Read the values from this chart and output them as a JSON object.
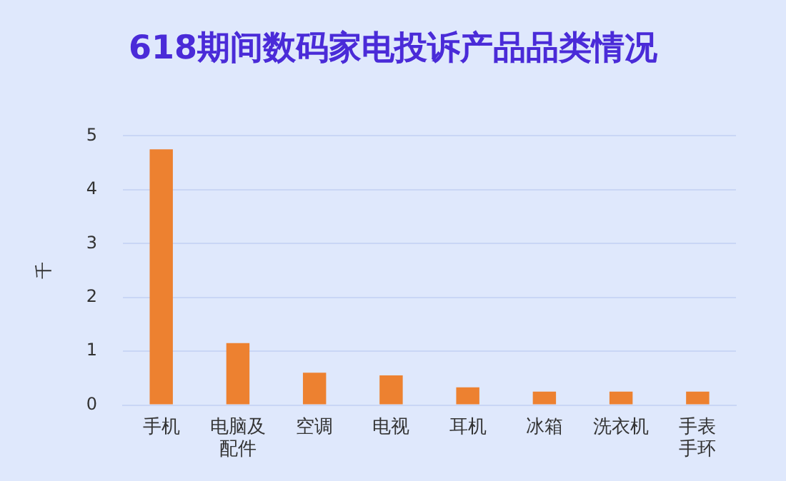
{
  "chart_data": {
    "type": "bar",
    "title": "618期间数码家电投诉产品品类情况",
    "ylabel": "千",
    "categories": [
      "手机",
      "电脑及配件",
      "空调",
      "电视",
      "耳机",
      "冰箱",
      "洗衣机",
      "手表手环"
    ],
    "values": [
      4.75,
      1.15,
      0.6,
      0.55,
      0.33,
      0.25,
      0.25,
      0.25
    ],
    "color": "#ed8130",
    "ylim": [
      0,
      5
    ],
    "yticks": [
      0,
      1,
      2,
      3,
      4,
      5
    ],
    "grid": "y",
    "legend": false
  }
}
